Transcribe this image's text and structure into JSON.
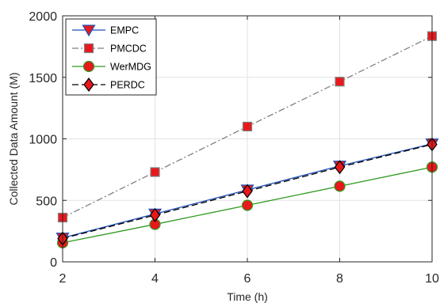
{
  "chart_data": {
    "type": "line",
    "xlabel": "Time (h)",
    "ylabel": "Collected Data Amount (M)",
    "x": [
      2,
      4,
      6,
      8,
      10
    ],
    "xlim": [
      2,
      10
    ],
    "ylim": [
      0,
      2000
    ],
    "xticks": [
      "2",
      "4",
      "6",
      "8",
      "10"
    ],
    "yticks": [
      "0",
      "500",
      "1000",
      "1500",
      "2000"
    ],
    "grid": true,
    "legend_position": "top-left",
    "series": [
      {
        "name": "EMPC",
        "values": [
          195,
          390,
          585,
          780,
          960
        ],
        "color": "#1f4fb4",
        "line": "solid",
        "marker": "triangle-down",
        "marker_fill": "#e8181c"
      },
      {
        "name": "PMCDC",
        "values": [
          360,
          730,
          1100,
          1465,
          1835
        ],
        "color": "#808080",
        "line": "dashdot",
        "marker": "square",
        "marker_fill": "#e8181c"
      },
      {
        "name": "WerMDG",
        "values": [
          155,
          305,
          460,
          615,
          770
        ],
        "color": "#2e9b1f",
        "line": "solid",
        "marker": "circle",
        "marker_fill": "#e8181c"
      },
      {
        "name": "PERDC",
        "values": [
          190,
          380,
          575,
          770,
          955
        ],
        "color": "#000000",
        "line": "dashed",
        "marker": "diamond",
        "marker_fill": "#e8181c"
      }
    ]
  }
}
